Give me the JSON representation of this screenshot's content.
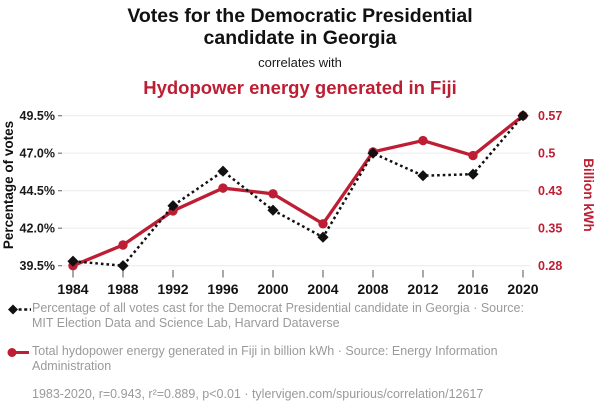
{
  "header": {
    "title": "Votes for the Democratic Presidential candidate in Georgia",
    "connector": "correlates with",
    "subtitle": "Hydopower energy generated in Fiji"
  },
  "chart_data": {
    "type": "line",
    "x": [
      1984,
      1988,
      1992,
      1996,
      2000,
      2004,
      2008,
      2012,
      2016,
      2020
    ],
    "series": [
      {
        "name": "Percentage of all votes cast for the Democrat Presidential candidate in Georgia",
        "axis": "left",
        "style": "dashed-diamond",
        "color": "#111111",
        "values": [
          39.8,
          39.5,
          43.5,
          45.8,
          43.2,
          41.4,
          47.0,
          45.5,
          45.6,
          49.5
        ]
      },
      {
        "name": "Total hydopower energy generated in Fiji in billion kWh",
        "axis": "right",
        "style": "solid-circle",
        "color": "#be1e33",
        "values": [
          0.28,
          0.32,
          0.386,
          0.43,
          0.419,
          0.361,
          0.5,
          0.522,
          0.493,
          0.57
        ]
      }
    ],
    "left_axis": {
      "label": "Percentage of votes",
      "ticks": [
        "49.5%",
        "47.0%",
        "44.5%",
        "42.0%",
        "39.5%"
      ],
      "tick_values": [
        49.5,
        47.0,
        44.5,
        42.0,
        39.5
      ],
      "range": [
        39.5,
        49.5
      ]
    },
    "right_axis": {
      "label": "Billion kWh",
      "ticks": [
        "0.57",
        "0.5",
        "0.43",
        "0.35",
        "0.28"
      ],
      "range": [
        0.28,
        0.57
      ]
    },
    "grid": true,
    "legend_position": "bottom"
  },
  "legend": {
    "items": [
      {
        "marker": "black-diamond-dashed",
        "text": "Percentage of all votes cast for the Democrat Presidential candidate in Georgia · Source: MIT Election Data and Science Lab, Harvard Dataverse"
      },
      {
        "marker": "red-circle-solid",
        "text": "Total hydopower energy generated in Fiji in billion kWh · Source: Energy Information Administration"
      }
    ]
  },
  "footer": {
    "stats": "1983-2020, r=0.943, r²=0.889, p<0.01 · tylervigen.com/spurious/correlation/12617"
  },
  "colors": {
    "accent_red": "#be1e33",
    "series_black": "#111111",
    "text_gray": "#9a9a9a",
    "grid": "#ededed",
    "tick": "#7a7a7a"
  }
}
